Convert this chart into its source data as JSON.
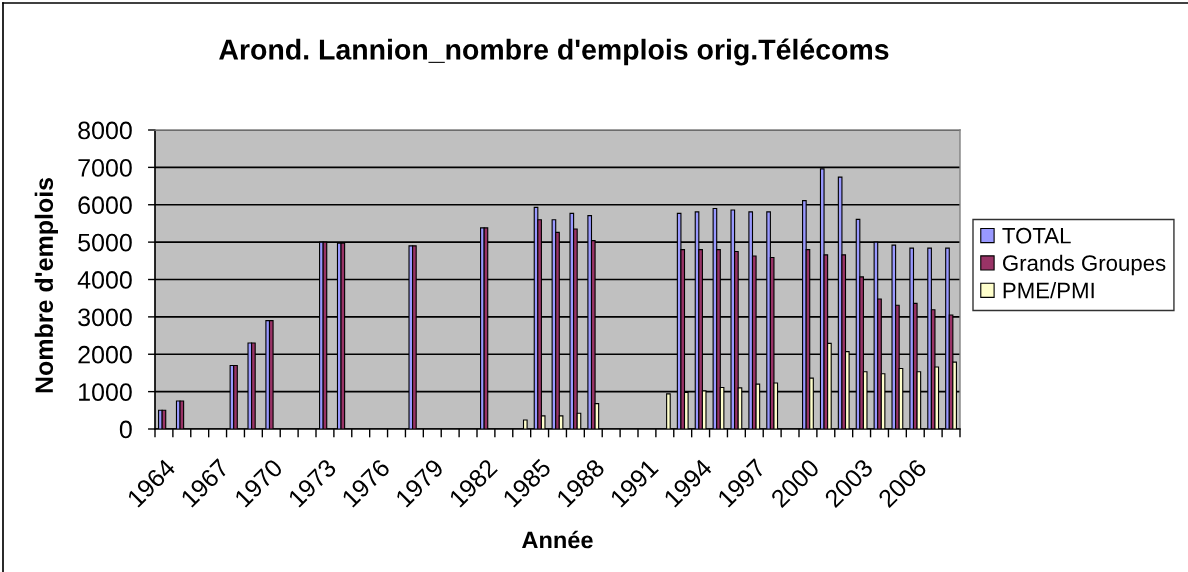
{
  "chart_data": {
    "type": "bar",
    "title": "Arond. Lannion_nombre d'emplois orig.Télécoms",
    "xlabel": "Année",
    "ylabel": "Nombre d'emplois",
    "categories": [
      "1964",
      null,
      null,
      "1967",
      null,
      null,
      "1970",
      null,
      null,
      "1973",
      null,
      null,
      "1976",
      null,
      null,
      "1979",
      null,
      null,
      "1982",
      null,
      null,
      "1985",
      null,
      null,
      "1988",
      null,
      null,
      "1991",
      null,
      null,
      "1994",
      null,
      null,
      "1997",
      null,
      null,
      "2000",
      null,
      null,
      "2003",
      null,
      null,
      "2006",
      null,
      null
    ],
    "series": [
      {
        "name": "TOTAL",
        "color": "#9999ff",
        "values": [
          500,
          750,
          null,
          null,
          1700,
          2300,
          2900,
          null,
          null,
          5000,
          4970,
          null,
          null,
          null,
          4900,
          null,
          null,
          null,
          5380,
          null,
          null,
          5930,
          5600,
          5770,
          5710,
          null,
          null,
          null,
          null,
          5770,
          5810,
          5900,
          5860,
          5810,
          5810,
          null,
          6110,
          6960,
          6740,
          5610,
          5000,
          4920,
          4840,
          4840,
          4840
        ]
      },
      {
        "name": "Grands Groupes",
        "color": "#993366",
        "values": [
          500,
          750,
          null,
          null,
          1700,
          2300,
          2900,
          null,
          null,
          5000,
          4970,
          null,
          null,
          null,
          4900,
          null,
          null,
          null,
          5380,
          null,
          null,
          5600,
          5260,
          5350,
          5040,
          null,
          null,
          null,
          null,
          4800,
          4800,
          4800,
          4750,
          4630,
          4590,
          null,
          4800,
          4660,
          4660,
          4070,
          3480,
          3310,
          3360,
          3190,
          3050
        ]
      },
      {
        "name": "PME/PMI",
        "color": "#ffffcc",
        "values": [
          null,
          null,
          null,
          null,
          null,
          null,
          null,
          null,
          null,
          null,
          null,
          null,
          null,
          null,
          null,
          null,
          null,
          null,
          null,
          null,
          240,
          350,
          350,
          420,
          680,
          null,
          null,
          null,
          940,
          980,
          1020,
          1110,
          1100,
          1200,
          1230,
          null,
          1360,
          2290,
          2070,
          1530,
          1480,
          1620,
          1530,
          1660,
          1790
        ]
      }
    ],
    "ylim": [
      0,
      8000
    ],
    "yticks": [
      0,
      1000,
      2000,
      3000,
      4000,
      5000,
      6000,
      7000,
      8000
    ],
    "grid": "y",
    "legend": "right"
  }
}
